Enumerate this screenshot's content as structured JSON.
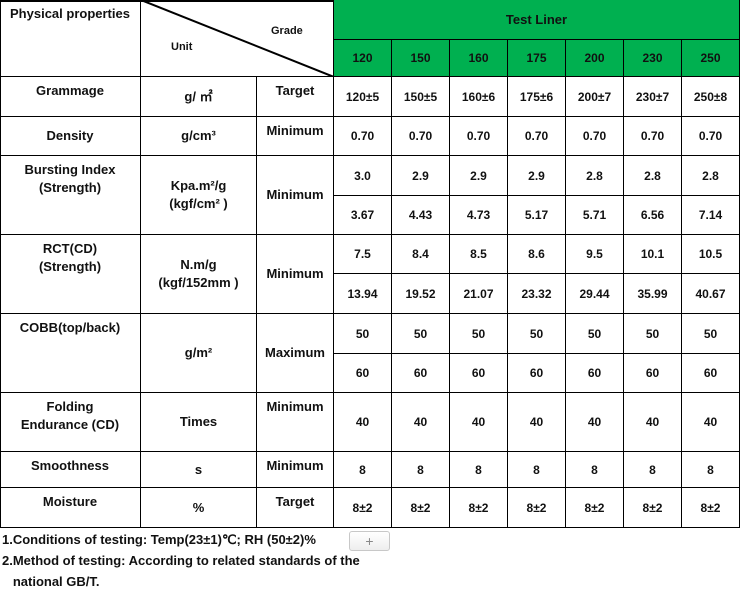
{
  "header": {
    "property_label": "Physical properties",
    "unit_label": "Unit",
    "grade_label": "Grade",
    "product": "Test Liner",
    "grades": [
      "120",
      "150",
      "160",
      "175",
      "200",
      "230",
      "250"
    ],
    "accent_color": "#00b050"
  },
  "rows": [
    {
      "property": "Grammage",
      "unit": "g/ ㎡",
      "requirement": "Target",
      "values": [
        [
          "120±5",
          "150±5",
          "160±6",
          "175±6",
          "200±7",
          "230±7",
          "250±8"
        ]
      ]
    },
    {
      "property": "Density",
      "unit": "g/cm³",
      "requirement": "Minimum",
      "values": [
        [
          "0.70",
          "0.70",
          "0.70",
          "0.70",
          "0.70",
          "0.70",
          "0.70"
        ]
      ]
    },
    {
      "property": "Bursting Index\n(Strength)",
      "unit": "Kpa.m²/g\n(kgf/cm² )",
      "requirement": "Minimum",
      "values": [
        [
          "3.0",
          "2.9",
          "2.9",
          "2.9",
          "2.8",
          "2.8",
          "2.8"
        ],
        [
          "3.67",
          "4.43",
          "4.73",
          "5.17",
          "5.71",
          "6.56",
          "7.14"
        ]
      ]
    },
    {
      "property": "RCT(CD)\n(Strength)",
      "unit": "N.m/g\n(kgf/152mm )",
      "requirement": "Minimum",
      "values": [
        [
          "7.5",
          "8.4",
          "8.5",
          "8.6",
          "9.5",
          "10.1",
          "10.5"
        ],
        [
          "13.94",
          "19.52",
          "21.07",
          "23.32",
          "29.44",
          "35.99",
          "40.67"
        ]
      ]
    },
    {
      "property": "COBB(top/back)",
      "unit": "g/m²",
      "requirement": "Maximum",
      "values": [
        [
          "50",
          "50",
          "50",
          "50",
          "50",
          "50",
          "50"
        ],
        [
          "60",
          "60",
          "60",
          "60",
          "60",
          "60",
          "60"
        ]
      ]
    },
    {
      "property": "Folding\nEndurance (CD)",
      "unit": "Times",
      "requirement": "Minimum",
      "values": [
        [
          "40",
          "40",
          "40",
          "40",
          "40",
          "40",
          "40"
        ]
      ]
    },
    {
      "property": "Smoothness",
      "unit": "s",
      "requirement": "Minimum",
      "values": [
        [
          "8",
          "8",
          "8",
          "8",
          "8",
          "8",
          "8"
        ]
      ]
    },
    {
      "property": "Moisture",
      "unit": "%",
      "requirement": "Target",
      "values": [
        [
          "8±2",
          "8±2",
          "8±2",
          "8±2",
          "8±2",
          "8±2",
          "8±2"
        ]
      ]
    }
  ],
  "notes": [
    "1.Conditions of testing: Temp(23±1)℃; RH (50±2)%",
    "2.Method of testing: According to related standards of the",
    "   national GB/T."
  ],
  "add_button_label": "+"
}
